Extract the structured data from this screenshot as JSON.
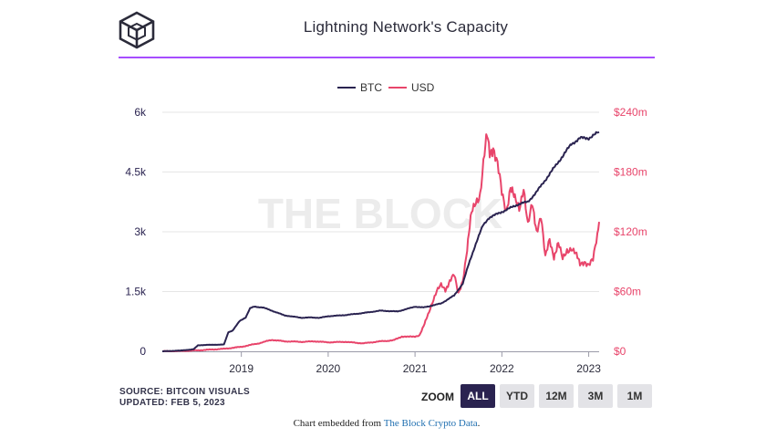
{
  "header": {
    "title": "Lightning Network's Capacity"
  },
  "logo": {
    "icon": "cube-logo-icon"
  },
  "colors": {
    "btc": "#2a2350",
    "usd": "#e8456b",
    "accent": "#a64dff",
    "watermark": "#ececec"
  },
  "watermark": "THE BLOCK",
  "chart_data": {
    "type": "line",
    "title": "Lightning Network's Capacity",
    "legend": [
      "BTC",
      "USD"
    ],
    "legend_position": "top-center",
    "x_ticks": [
      "2019",
      "2020",
      "2021",
      "2022",
      "2023"
    ],
    "x_range": [
      2018.09,
      2023.12
    ],
    "left_axis": {
      "ticks": [
        "0",
        "1.5k",
        "3k",
        "4.5k",
        "6k"
      ],
      "values": [
        0,
        1500,
        3000,
        4500,
        6000
      ],
      "ylim": [
        0,
        6000
      ],
      "unit": "BTC"
    },
    "right_axis": {
      "ticks": [
        "$0",
        "$60m",
        "$120m",
        "$180m",
        "$240m"
      ],
      "values": [
        0,
        60,
        120,
        180,
        240
      ],
      "ylim": [
        0,
        240
      ],
      "unit": "USD millions"
    },
    "series": [
      {
        "name": "BTC",
        "axis": "left",
        "x": [
          2018.09,
          2018.3,
          2018.45,
          2018.5,
          2018.6,
          2018.8,
          2018.85,
          2018.9,
          2018.98,
          2019.05,
          2019.1,
          2019.15,
          2019.25,
          2019.4,
          2019.5,
          2019.6,
          2019.7,
          2019.8,
          2019.9,
          2020.0,
          2020.2,
          2020.4,
          2020.6,
          2020.8,
          2020.9,
          2021.0,
          2021.1,
          2021.2,
          2021.3,
          2021.45,
          2021.55,
          2021.62,
          2021.7,
          2021.78,
          2021.85,
          2021.95,
          2022.1,
          2022.2,
          2022.3,
          2022.4,
          2022.5,
          2022.6,
          2022.7,
          2022.8,
          2022.9,
          2023.0,
          2023.05,
          2023.12
        ],
        "values": [
          0,
          20,
          50,
          150,
          160,
          170,
          480,
          520,
          760,
          850,
          1080,
          1120,
          1100,
          980,
          900,
          870,
          840,
          850,
          840,
          880,
          910,
          960,
          1020,
          1000,
          1060,
          1120,
          1100,
          1150,
          1200,
          1400,
          1700,
          2200,
          2700,
          3150,
          3350,
          3450,
          3600,
          3700,
          3750,
          4000,
          4300,
          4600,
          4900,
          5200,
          5350,
          5350,
          5420,
          5500
        ]
      },
      {
        "name": "USD",
        "axis": "right",
        "x": [
          2018.09,
          2018.3,
          2018.5,
          2018.8,
          2019.0,
          2019.2,
          2019.35,
          2019.5,
          2019.7,
          2019.85,
          2020.0,
          2020.2,
          2020.4,
          2020.6,
          2020.75,
          2020.85,
          2020.92,
          2021.0,
          2021.05,
          2021.1,
          2021.15,
          2021.2,
          2021.25,
          2021.3,
          2021.35,
          2021.4,
          2021.45,
          2021.5,
          2021.55,
          2021.6,
          2021.65,
          2021.7,
          2021.75,
          2021.8,
          2021.83,
          2021.86,
          2021.9,
          2021.95,
          2022.0,
          2022.05,
          2022.1,
          2022.15,
          2022.2,
          2022.25,
          2022.3,
          2022.35,
          2022.4,
          2022.45,
          2022.5,
          2022.55,
          2022.6,
          2022.65,
          2022.7,
          2022.75,
          2022.8,
          2022.85,
          2022.9,
          2022.95,
          2023.0,
          2023.05,
          2023.1,
          2023.12
        ],
        "values": [
          0,
          0.3,
          1,
          2.5,
          4.5,
          8,
          11.5,
          10,
          9.5,
          10,
          9,
          9.5,
          8,
          10,
          11,
          15,
          14.5,
          15,
          16,
          25,
          37,
          50,
          60,
          66,
          62,
          71,
          76,
          58,
          72,
          102,
          138,
          152,
          158,
          196,
          216,
          201,
          206,
          186,
          158,
          142,
          166,
          151,
          143,
          167,
          126,
          146,
          122,
          137,
          93,
          112,
          96,
          108,
          92,
          102,
          104,
          97,
          88,
          91,
          86,
          91,
          118,
          130
        ]
      }
    ]
  },
  "footer": {
    "source": "SOURCE: BITCOIN VISUALS",
    "updated": "UPDATED: FEB 5, 2023",
    "zoom_label": "ZOOM",
    "zoom_buttons": [
      "ALL",
      "YTD",
      "12M",
      "3M",
      "1M"
    ],
    "embed_prefix": "Chart embedded from",
    "embed_link": "The Block Crypto Data",
    "embed_suffix": "."
  }
}
